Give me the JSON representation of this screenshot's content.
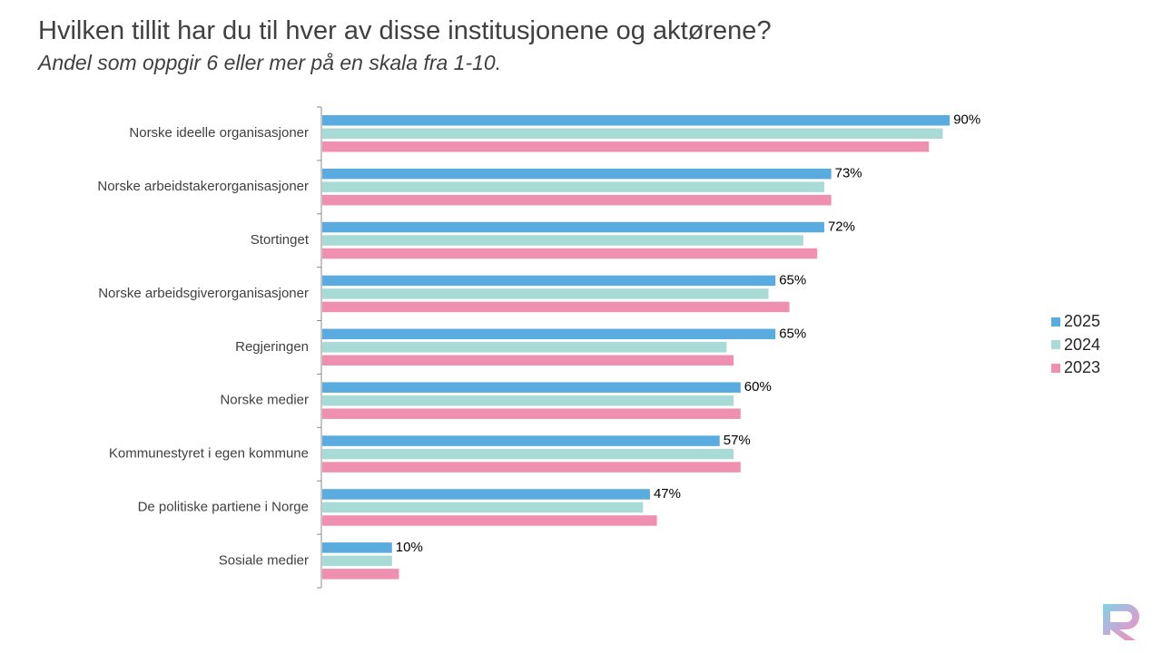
{
  "header": {
    "title": "Hvilken tillit har du til hver av disse institusjonene og aktørene?",
    "subtitle": "Andel som oppgir 6 eller mer på en skala fra 1-10."
  },
  "colors": {
    "2025": "#5aabdf",
    "2024": "#a8dbd5",
    "2023": "#f090b0"
  },
  "chart_data": {
    "type": "bar",
    "orientation": "horizontal",
    "title": "Hvilken tillit har du til hver av disse institusjonene og aktørene?",
    "subtitle": "Andel som oppgir 6 eller mer på en skala fra 1-10.",
    "xlabel": "",
    "ylabel": "",
    "xlim": [
      0,
      100
    ],
    "grid": false,
    "legend_position": "right",
    "categories": [
      "Norske ideelle organisasjoner",
      "Norske arbeidstakerorganisasjoner",
      "Stortinget",
      "Norske arbeidsgiverorganisasjoner",
      "Regjeringen",
      "Norske medier",
      "Kommunestyret i egen kommune",
      "De politiske partiene i Norge",
      "Sosiale medier"
    ],
    "series": [
      {
        "name": "2025",
        "values": [
          90,
          73,
          72,
          65,
          65,
          60,
          57,
          47,
          10
        ],
        "labels": [
          "90%",
          "73%",
          "72%",
          "65%",
          "65%",
          "60%",
          "57%",
          "47%",
          "10%"
        ]
      },
      {
        "name": "2024",
        "values": [
          89,
          72,
          69,
          64,
          58,
          59,
          59,
          46,
          10
        ]
      },
      {
        "name": "2023",
        "values": [
          87,
          73,
          71,
          67,
          59,
          60,
          60,
          48,
          11
        ]
      }
    ]
  },
  "legend": {
    "items": [
      "2025",
      "2024",
      "2023"
    ]
  },
  "logo": {
    "name": "brand-logo"
  }
}
